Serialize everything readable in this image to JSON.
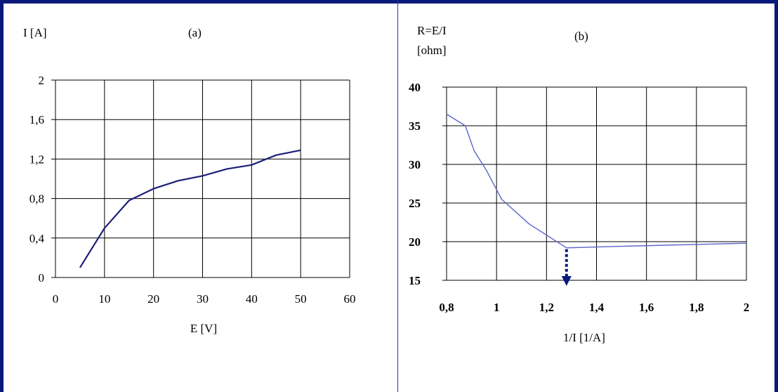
{
  "chart_data": [
    {
      "type": "line",
      "annotation": "(a)",
      "ylabel": "I [A]",
      "xlabel": "E [V]",
      "xlim": [
        0,
        60
      ],
      "ylim": [
        0,
        2
      ],
      "x_ticks": [
        "0",
        "10",
        "20",
        "30",
        "40",
        "50",
        "60"
      ],
      "y_ticks": [
        "0",
        "0,4",
        "0,8",
        "1,2",
        "1,6",
        "2"
      ],
      "grid": true,
      "line_color": "#1c1f7a",
      "series": [
        {
          "x": [
            5,
            10,
            15,
            20,
            25,
            30,
            35,
            40,
            45,
            50
          ],
          "y": [
            0.1,
            0.5,
            0.78,
            0.9,
            0.98,
            1.03,
            1.1,
            1.14,
            1.24,
            1.29
          ]
        }
      ]
    },
    {
      "type": "line",
      "annotation": "(b)",
      "ylabel": "R=E/I",
      "ylabel2": "[ohm]",
      "xlabel": "1/I  [1/A]",
      "xlim": [
        0.8,
        2
      ],
      "ylim": [
        15,
        40
      ],
      "x_ticks": [
        "0,8",
        "1",
        "1,2",
        "1,4",
        "1,6",
        "1,8",
        "2"
      ],
      "y_ticks": [
        "15",
        "20",
        "25",
        "30",
        "35",
        "40"
      ],
      "grid": true,
      "line_color": "#5a64c8",
      "arrow_color": "#0a1a7a",
      "arrow_x": 1.28,
      "series": [
        {
          "x": [
            0.8,
            0.875,
            0.91,
            0.96,
            1.02,
            1.13,
            1.28,
            1.5,
            2.0
          ],
          "y": [
            36.5,
            35.0,
            31.8,
            29.2,
            25.5,
            22.3,
            19.2,
            19.4,
            19.8
          ]
        }
      ]
    }
  ]
}
